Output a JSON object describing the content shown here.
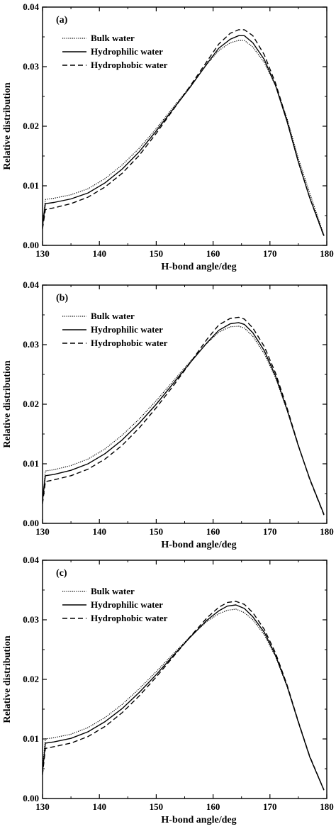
{
  "chart_data": [
    {
      "type": "line",
      "panel": "(a)",
      "xlabel": "H-bond angle/deg",
      "ylabel": "Relative distribution",
      "xlim": [
        130,
        180
      ],
      "ylim": [
        0,
        0.04
      ],
      "xticks": [
        "130",
        "140",
        "150",
        "160",
        "170",
        "180"
      ],
      "yticks": [
        "0.00",
        "0.01",
        "0.02",
        "0.03",
        "0.04"
      ],
      "legend_position": "top-left",
      "series": [
        {
          "name": "Bulk water",
          "style": "dotted",
          "x": [
            130,
            130.5,
            132,
            135,
            138,
            141,
            144,
            147,
            150,
            153,
            156,
            159,
            161,
            163,
            164.5,
            165.5,
            167,
            169,
            171,
            173,
            175,
            177,
            179.5
          ],
          "y": [
            0.0037,
            0.0077,
            0.0079,
            0.0085,
            0.0095,
            0.0112,
            0.0135,
            0.0163,
            0.0196,
            0.0232,
            0.0267,
            0.0305,
            0.0327,
            0.034,
            0.0344,
            0.0344,
            0.0333,
            0.0307,
            0.0268,
            0.0213,
            0.0146,
            0.0088,
            0.0017
          ]
        },
        {
          "name": "Hydrophilic water",
          "style": "solid",
          "x": [
            130,
            130.5,
            132,
            135,
            138,
            141,
            144,
            147,
            150,
            153,
            156,
            159,
            161,
            163,
            164.5,
            165.5,
            167,
            169,
            171,
            173,
            175,
            177,
            179.5
          ],
          "y": [
            0.0032,
            0.007,
            0.0072,
            0.0078,
            0.0088,
            0.0105,
            0.0128,
            0.0157,
            0.0192,
            0.0229,
            0.0266,
            0.0306,
            0.0331,
            0.0346,
            0.0352,
            0.0352,
            0.034,
            0.0312,
            0.0268,
            0.0208,
            0.014,
            0.008,
            0.0016
          ]
        },
        {
          "name": "Hydrophobic water",
          "style": "dashed",
          "x": [
            130,
            130.5,
            132,
            135,
            138,
            141,
            144,
            147,
            150,
            153,
            156,
            159,
            161,
            163,
            164.5,
            165.5,
            167,
            169,
            171,
            173,
            175,
            177,
            179.5
          ],
          "y": [
            0.0028,
            0.006,
            0.0063,
            0.007,
            0.0081,
            0.0098,
            0.0121,
            0.0151,
            0.0188,
            0.0228,
            0.0268,
            0.031,
            0.0338,
            0.0356,
            0.0362,
            0.0362,
            0.0352,
            0.032,
            0.0272,
            0.021,
            0.014,
            0.008,
            0.0015
          ]
        }
      ]
    },
    {
      "type": "line",
      "panel": "(b)",
      "xlabel": "H-bond angle/deg",
      "ylabel": "Relative distribution",
      "xlim": [
        130,
        180
      ],
      "ylim": [
        0,
        0.04
      ],
      "xticks": [
        "130",
        "140",
        "150",
        "160",
        "170",
        "180"
      ],
      "yticks": [
        "0.00",
        "0.01",
        "0.02",
        "0.03",
        "0.04"
      ],
      "legend_position": "top-left",
      "series": [
        {
          "name": "Bulk water",
          "style": "dotted",
          "x": [
            130,
            130.5,
            132,
            135,
            138,
            141,
            144,
            147,
            150,
            153,
            156,
            159,
            161,
            163,
            164.5,
            165.5,
            167,
            169,
            171,
            173,
            175,
            177,
            179.5
          ],
          "y": [
            0.0042,
            0.0088,
            0.009,
            0.0097,
            0.0108,
            0.0125,
            0.0148,
            0.0175,
            0.0206,
            0.0239,
            0.0272,
            0.0303,
            0.0321,
            0.033,
            0.0331,
            0.0328,
            0.0314,
            0.0285,
            0.0244,
            0.019,
            0.013,
            0.0075,
            0.0015
          ]
        },
        {
          "name": "Hydrophilic water",
          "style": "solid",
          "x": [
            130,
            130.5,
            132,
            135,
            138,
            141,
            144,
            147,
            150,
            153,
            156,
            159,
            161,
            163,
            164.5,
            165.5,
            167,
            169,
            171,
            173,
            175,
            177,
            179.5
          ],
          "y": [
            0.0038,
            0.008,
            0.0082,
            0.0089,
            0.01,
            0.0117,
            0.014,
            0.0168,
            0.02,
            0.0235,
            0.027,
            0.0304,
            0.0324,
            0.0335,
            0.0337,
            0.0334,
            0.032,
            0.029,
            0.0247,
            0.0191,
            0.013,
            0.0075,
            0.0015
          ]
        },
        {
          "name": "Hydrophobic water",
          "style": "dashed",
          "x": [
            130,
            130.5,
            132,
            135,
            138,
            141,
            144,
            147,
            150,
            153,
            156,
            159,
            161,
            163,
            164.5,
            165.5,
            167,
            169,
            171,
            173,
            175,
            177,
            179.5
          ],
          "y": [
            0.0033,
            0.007,
            0.0073,
            0.008,
            0.0091,
            0.0108,
            0.0131,
            0.016,
            0.0194,
            0.0231,
            0.027,
            0.031,
            0.0333,
            0.0344,
            0.0346,
            0.0343,
            0.0328,
            0.0297,
            0.0252,
            0.0194,
            0.0131,
            0.0074,
            0.0014
          ]
        }
      ]
    },
    {
      "type": "line",
      "panel": "(c)",
      "xlabel": "H-bond angle/deg",
      "ylabel": "Relative distribution",
      "xlim": [
        130,
        180
      ],
      "ylim": [
        0,
        0.04
      ],
      "xticks": [
        "130",
        "140",
        "150",
        "160",
        "170",
        "180"
      ],
      "yticks": [
        "0.00",
        "0.01",
        "0.02",
        "0.03",
        "0.04"
      ],
      "legend_position": "top-left",
      "series": [
        {
          "name": "Bulk water",
          "style": "dotted",
          "x": [
            130,
            130.5,
            132,
            135,
            138,
            141,
            144,
            147,
            150,
            153,
            156,
            159,
            161,
            162.5,
            164,
            165.5,
            167,
            169,
            171,
            173,
            175,
            177,
            179.5
          ],
          "y": [
            0.005,
            0.01,
            0.0102,
            0.0108,
            0.0119,
            0.0136,
            0.0158,
            0.0184,
            0.0213,
            0.0243,
            0.0272,
            0.0298,
            0.031,
            0.0316,
            0.0318,
            0.0312,
            0.03,
            0.0275,
            0.0238,
            0.0188,
            0.0128,
            0.007,
            0.0014
          ]
        },
        {
          "name": "Hydrophilic water",
          "style": "solid",
          "x": [
            130,
            130.5,
            132,
            135,
            138,
            141,
            144,
            147,
            150,
            153,
            156,
            159,
            161,
            162.5,
            164,
            165.5,
            167,
            169,
            171,
            173,
            175,
            177,
            179.5
          ],
          "y": [
            0.0045,
            0.0093,
            0.0095,
            0.0101,
            0.0112,
            0.0129,
            0.0151,
            0.0178,
            0.0208,
            0.024,
            0.0271,
            0.03,
            0.0315,
            0.0323,
            0.0325,
            0.0319,
            0.0305,
            0.0279,
            0.024,
            0.0189,
            0.0128,
            0.007,
            0.0014
          ]
        },
        {
          "name": "Hydrophobic water",
          "style": "dashed",
          "x": [
            130,
            130.5,
            132,
            135,
            138,
            141,
            144,
            147,
            150,
            153,
            156,
            159,
            161,
            162.5,
            164,
            165.5,
            167,
            169,
            171,
            173,
            175,
            177,
            179.5
          ],
          "y": [
            0.004,
            0.0084,
            0.0087,
            0.0093,
            0.0104,
            0.0121,
            0.0144,
            0.0172,
            0.0204,
            0.0238,
            0.0272,
            0.0304,
            0.0321,
            0.0329,
            0.0331,
            0.0326,
            0.0312,
            0.0284,
            0.0244,
            0.0191,
            0.0129,
            0.0071,
            0.0014
          ]
        }
      ]
    }
  ]
}
